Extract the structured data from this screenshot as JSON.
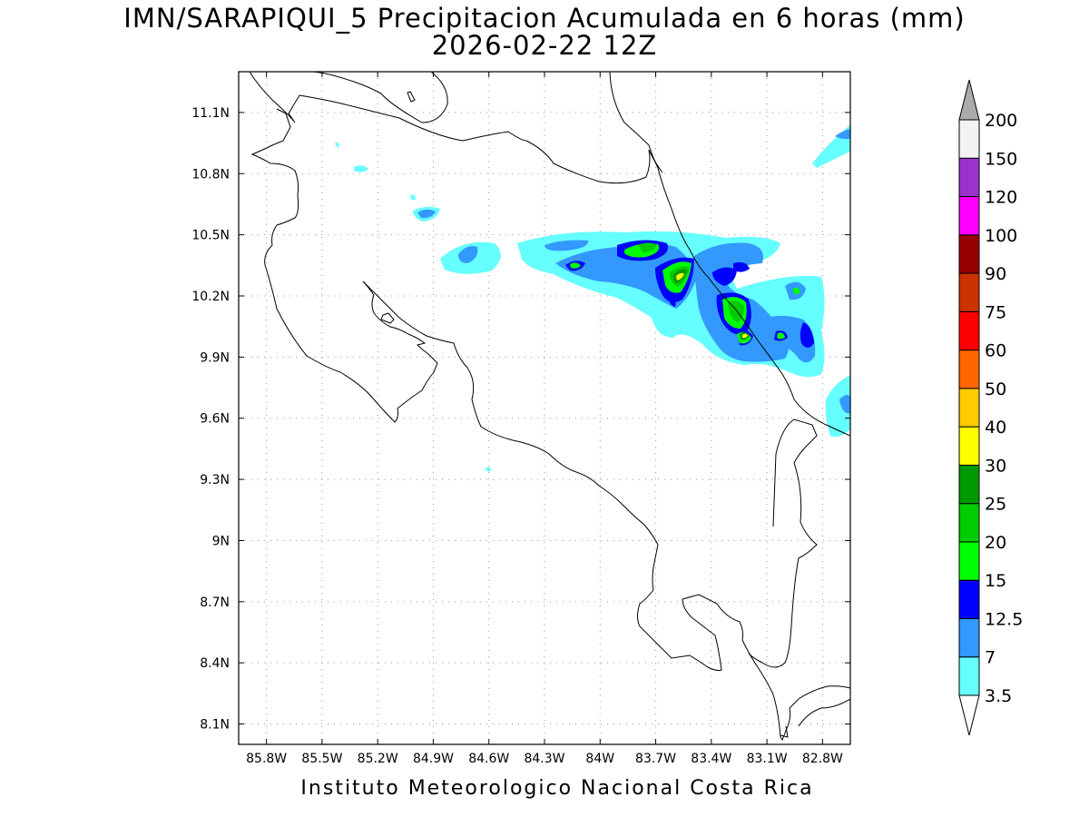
{
  "header": {
    "title": "IMN/SARAPIQUI_5 Precipitacion Acumulada en 6 horas (mm)",
    "subtitle": "2026-02-22 12Z"
  },
  "footer": {
    "credit": "Instituto Meteorologico Nacional Costa Rica"
  },
  "map": {
    "lon_range": [
      -85.95,
      -82.65
    ],
    "lat_range": [
      8.0,
      11.3
    ],
    "lat_ticks": [
      "11.1N",
      "10.8N",
      "10.5N",
      "10.2N",
      "9.9N",
      "9.6N",
      "9.3N",
      "9N",
      "8.7N",
      "8.4N",
      "8.1N"
    ],
    "lon_ticks": [
      "85.8W",
      "85.5W",
      "85.2W",
      "84.9W",
      "84.6W",
      "84.3W",
      "84W",
      "83.7W",
      "83.4W",
      "83.1W",
      "82.8W"
    ]
  },
  "colorbar": {
    "labels": [
      "3.5",
      "7",
      "12.5",
      "15",
      "20",
      "25",
      "30",
      "40",
      "50",
      "60",
      "75",
      "90",
      "100",
      "120",
      "150",
      "200"
    ],
    "colors": [
      "#66ffff",
      "#3399ff",
      "#0000ff",
      "#00ff00",
      "#00cc00",
      "#009900",
      "#ffff00",
      "#ffcc00",
      "#ff6600",
      "#ff0000",
      "#cc3300",
      "#990000",
      "#ff00ff",
      "#9933cc",
      "#f2f2f2"
    ],
    "under_color": "#ffffff",
    "over_color": "#aaaaaa"
  }
}
